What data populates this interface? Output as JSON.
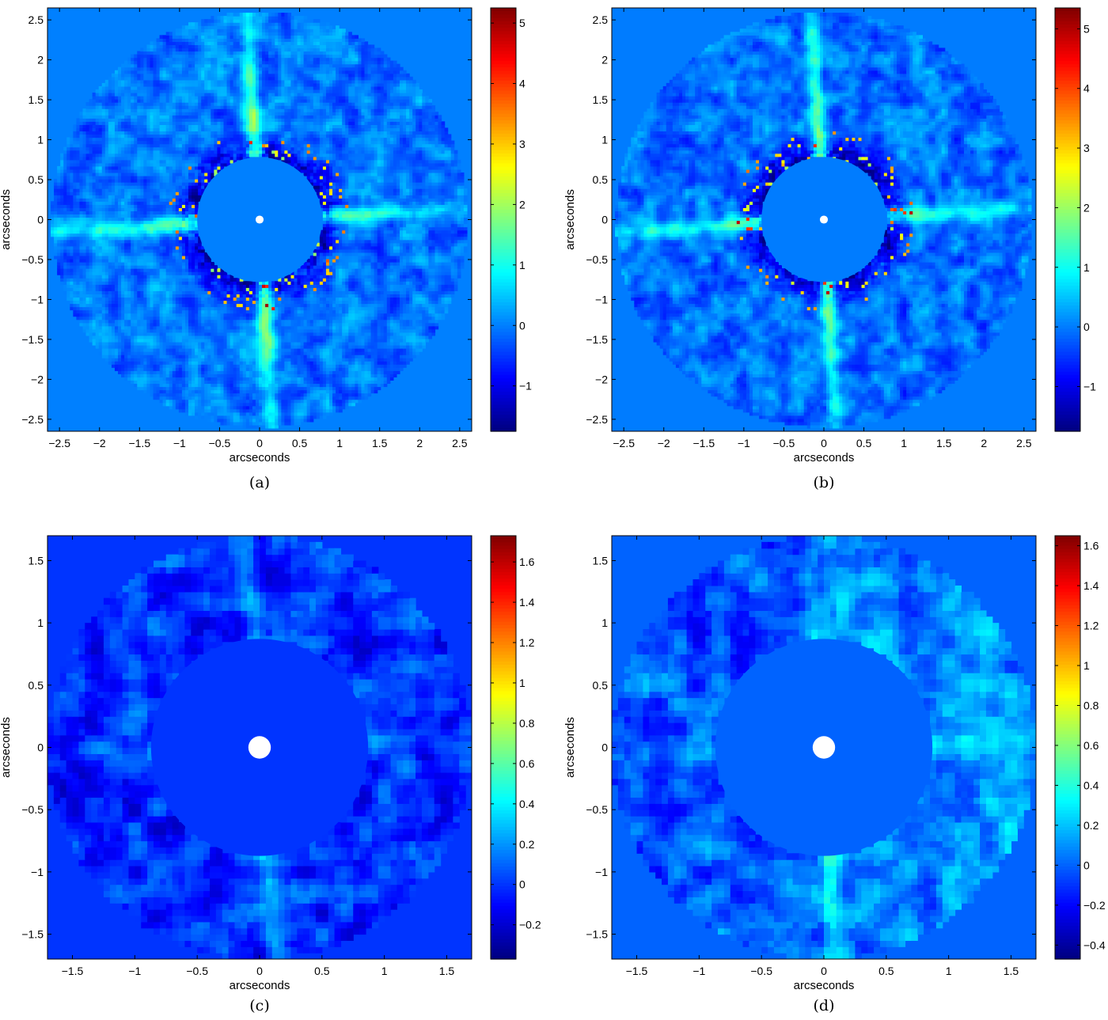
{
  "chart_data": [
    {
      "type": "heatmap",
      "caption": "(a)",
      "xlabel": "arcseconds",
      "ylabel": "arcseconds",
      "xlim": [
        -2.65,
        2.65
      ],
      "ylim": [
        -2.65,
        2.65
      ],
      "xticks": [
        -2.5,
        -2,
        -1.5,
        -1,
        -0.5,
        0,
        0.5,
        1,
        1.5,
        2,
        2.5
      ],
      "yticks": [
        2.5,
        2,
        1.5,
        1,
        0.5,
        0,
        -0.5,
        -1,
        -1.5,
        -2,
        -2.5
      ],
      "xtick_labels": [
        "−2.5",
        "−2",
        "−1.5",
        "−1",
        "−0.5",
        "0",
        "0.5",
        "1",
        "1.5",
        "2",
        "2.5"
      ],
      "ytick_labels": [
        "2.5",
        "2",
        "1.5",
        "1",
        "0.5",
        "0",
        "−0.5",
        "−1",
        "−1.5",
        "−2",
        "−2.5"
      ],
      "colorbar": {
        "range": [
          -1.75,
          5.25
        ],
        "ticks": [
          5,
          4,
          3,
          2,
          1,
          0,
          -1
        ],
        "tick_labels": [
          "5",
          "4",
          "3",
          "2",
          "1",
          "0",
          "−1"
        ]
      },
      "colormap": "jet",
      "mask_inner_radius": 0.78,
      "data_outer_radius": 2.6,
      "center_dot_radius": 0.05,
      "pixel_size": 0.04,
      "streak_amplitude": 3.6,
      "noise_amplitude": 0.35
    },
    {
      "type": "heatmap",
      "caption": "(b)",
      "xlabel": "arcseconds",
      "ylabel": "arcseconds",
      "xlim": [
        -2.65,
        2.65
      ],
      "ylim": [
        -2.65,
        2.65
      ],
      "xticks": [
        -2.5,
        -2,
        -1.5,
        -1,
        -0.5,
        0,
        0.5,
        1,
        1.5,
        2,
        2.5
      ],
      "yticks": [
        2.5,
        2,
        1.5,
        1,
        0.5,
        0,
        -0.5,
        -1,
        -1.5,
        -2,
        -2.5
      ],
      "xtick_labels": [
        "−2.5",
        "−2",
        "−1.5",
        "−1",
        "−0.5",
        "0",
        "0.5",
        "1",
        "1.5",
        "2",
        "2.5"
      ],
      "ytick_labels": [
        "2.5",
        "2",
        "1.5",
        "1",
        "0.5",
        "0",
        "−0.5",
        "−1",
        "−1.5",
        "−2",
        "−2.5"
      ],
      "colorbar": {
        "range": [
          -1.75,
          5.35
        ],
        "ticks": [
          5,
          4,
          3,
          2,
          1,
          0,
          -1
        ],
        "tick_labels": [
          "5",
          "4",
          "3",
          "2",
          "1",
          "0",
          "−1"
        ]
      },
      "colormap": "jet",
      "mask_inner_radius": 0.78,
      "data_outer_radius": 2.6,
      "center_dot_radius": 0.05,
      "pixel_size": 0.04,
      "streak_amplitude": 3.6,
      "noise_amplitude": 0.35
    },
    {
      "type": "heatmap",
      "caption": "(c)",
      "xlabel": "arcseconds",
      "ylabel": "arcseconds",
      "xlim": [
        -1.7,
        1.7
      ],
      "ylim": [
        -1.7,
        1.7
      ],
      "xticks": [
        -1.5,
        -1,
        -0.5,
        0,
        0.5,
        1,
        1.5
      ],
      "yticks": [
        1.5,
        1,
        0.5,
        0,
        -0.5,
        -1,
        -1.5
      ],
      "xtick_labels": [
        "−1.5",
        "−1",
        "−0.5",
        "0",
        "0.5",
        "1",
        "1.5"
      ],
      "ytick_labels": [
        "1.5",
        "1",
        "0.5",
        "0",
        "−0.5",
        "−1",
        "−1.5"
      ],
      "colorbar": {
        "range": [
          -0.37,
          1.73
        ],
        "ticks": [
          1.6,
          1.4,
          1.2,
          1,
          0.8,
          0.6,
          0.4,
          0.2,
          0,
          -0.2
        ],
        "tick_labels": [
          "1.6",
          "1.4",
          "1.2",
          "1",
          "0.8",
          "0.6",
          "0.4",
          "0.2",
          "0",
          "−0.2"
        ]
      },
      "colormap": "jet",
      "mask_inner_radius": 0.87,
      "data_outer_radius": 1.7,
      "center_dot_radius": 0.09,
      "pixel_size": 0.05,
      "streak_amplitude": 0.45,
      "noise_amplitude": 0.13
    },
    {
      "type": "heatmap",
      "caption": "(d)",
      "xlabel": "arcseconds",
      "ylabel": "arcseconds",
      "xlim": [
        -1.7,
        1.7
      ],
      "ylim": [
        -1.7,
        1.7
      ],
      "xticks": [
        -1.5,
        -1,
        -0.5,
        0,
        0.5,
        1,
        1.5
      ],
      "yticks": [
        1.5,
        1,
        0.5,
        0,
        -0.5,
        -1,
        -1.5
      ],
      "xtick_labels": [
        "−1.5",
        "−1",
        "−0.5",
        "0",
        "0.5",
        "1",
        "1.5"
      ],
      "ytick_labels": [
        "1.5",
        "1",
        "0.5",
        "0",
        "−0.5",
        "−1",
        "−1.5"
      ],
      "colorbar": {
        "range": [
          -0.47,
          1.65
        ],
        "ticks": [
          1.6,
          1.4,
          1.2,
          1,
          0.8,
          0.6,
          0.4,
          0.2,
          0,
          -0.2,
          -0.4
        ],
        "tick_labels": [
          "1.6",
          "1.4",
          "1.2",
          "1",
          "0.8",
          "0.6",
          "0.4",
          "0.2",
          "0",
          "−0.2",
          "−0.4"
        ]
      },
      "colormap": "jet",
      "mask_inner_radius": 0.87,
      "data_outer_radius": 1.7,
      "center_dot_radius": 0.09,
      "pixel_size": 0.05,
      "streak_amplitude": 0.4,
      "noise_amplitude": 0.13
    }
  ]
}
